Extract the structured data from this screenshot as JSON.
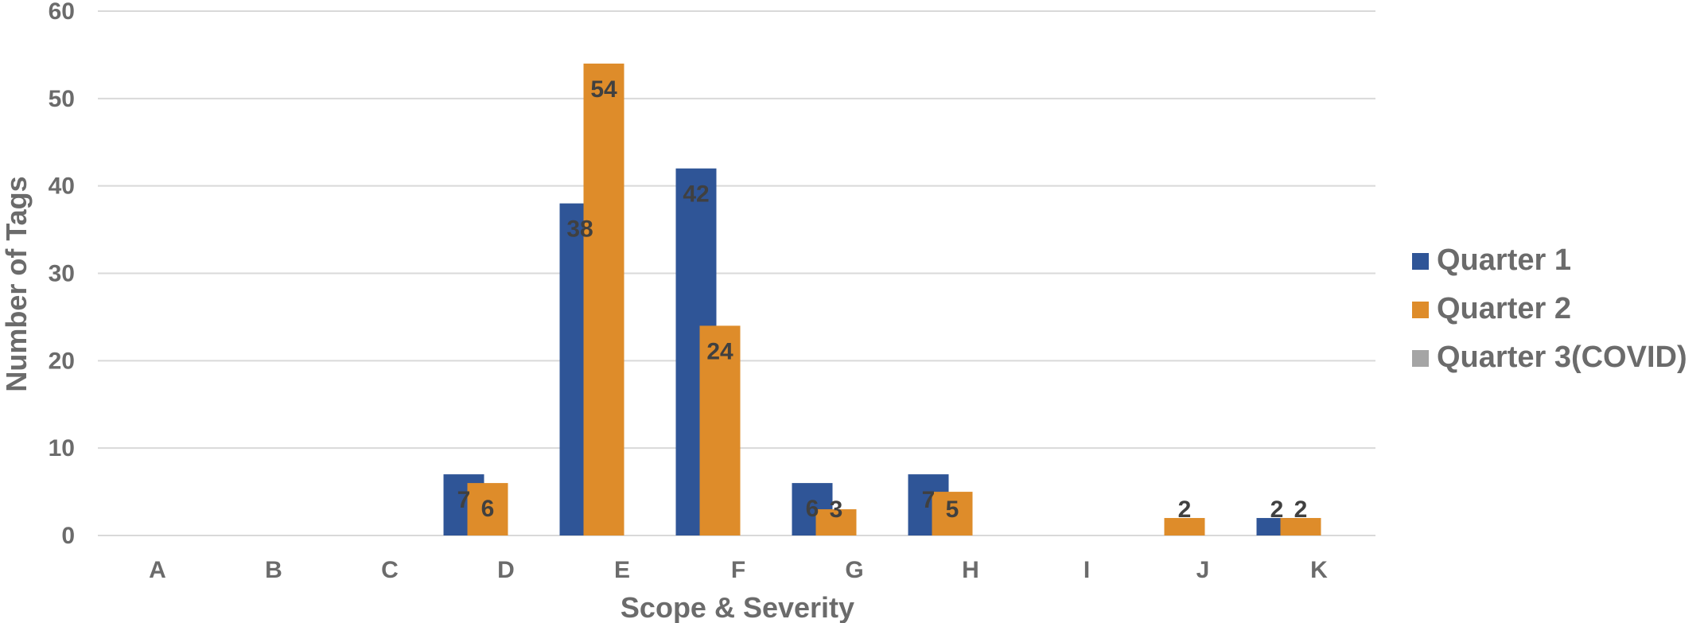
{
  "chart_data": {
    "type": "bar",
    "title": "",
    "xlabel": "Scope & Severity",
    "ylabel": "Number of Tags",
    "ylim": [
      0,
      60
    ],
    "yticks": [
      0,
      10,
      20,
      30,
      40,
      50,
      60
    ],
    "grid": true,
    "legend_position": "right",
    "categories": [
      "A",
      "B",
      "C",
      "D",
      "E",
      "F",
      "G",
      "H",
      "I",
      "J",
      "K"
    ],
    "series": [
      {
        "name": "Quarter 1",
        "color": "#2f5597",
        "values": [
          null,
          null,
          null,
          7,
          38,
          42,
          6,
          7,
          null,
          null,
          2
        ]
      },
      {
        "name": "Quarter 2",
        "color": "#de8c2a",
        "values": [
          null,
          null,
          null,
          6,
          54,
          24,
          3,
          5,
          null,
          2,
          2
        ]
      },
      {
        "name": "Quarter 3(COVID)",
        "color": "#a5a5a5",
        "values": [
          null,
          null,
          null,
          null,
          null,
          null,
          null,
          null,
          null,
          null,
          null
        ]
      }
    ]
  }
}
